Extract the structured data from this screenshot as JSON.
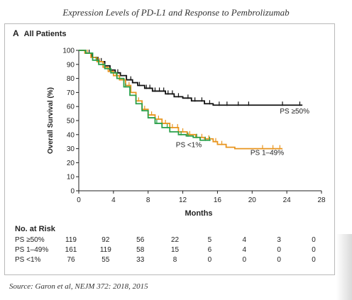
{
  "header": {
    "title": "Expression Levels of PD-L1 and Response to Pembrolizumab"
  },
  "panel": {
    "letter": "A",
    "subtitle": "All Patients"
  },
  "source": "Source: Garon et al, NEJM 372: 2018, 2015",
  "risk_table": {
    "title": "No. at Risk",
    "rows": [
      {
        "label": "PS ≥50%",
        "values": [
          "119",
          "92",
          "56",
          "22",
          "5",
          "4",
          "3",
          "0"
        ]
      },
      {
        "label": "PS 1–49%",
        "values": [
          "161",
          "119",
          "58",
          "15",
          "6",
          "4",
          "0",
          "0"
        ]
      },
      {
        "label": "PS <1%",
        "values": [
          "76",
          "55",
          "33",
          "8",
          "0",
          "0",
          "0",
          "0"
        ]
      }
    ]
  },
  "colors": {
    "ps50": "#111111",
    "ps1_49": "#e8951f",
    "ps1": "#2aa04a",
    "axis": "#222222",
    "panel_border": "#b9b9b9"
  },
  "chart_data": {
    "type": "line",
    "xlabel": "Months",
    "ylabel": "Overall Survival (%)",
    "xlim": [
      0,
      28
    ],
    "ylim": [
      0,
      100
    ],
    "xticks": [
      0,
      4,
      8,
      12,
      16,
      20,
      24,
      28
    ],
    "yticks": [
      0,
      10,
      20,
      30,
      40,
      50,
      60,
      70,
      80,
      90,
      100
    ],
    "grid": false,
    "series": [
      {
        "name": "PS ≥50%",
        "color_key": "ps50",
        "points": [
          [
            0,
            100
          ],
          [
            0.8,
            98
          ],
          [
            1.5,
            95
          ],
          [
            2.2,
            92
          ],
          [
            3,
            89
          ],
          [
            3.6,
            86
          ],
          [
            4.2,
            84
          ],
          [
            4.8,
            82
          ],
          [
            5.5,
            79
          ],
          [
            6.2,
            77
          ],
          [
            6.8,
            75
          ],
          [
            7.6,
            73
          ],
          [
            8.5,
            71
          ],
          [
            10,
            69
          ],
          [
            11,
            67
          ],
          [
            12,
            66
          ],
          [
            13,
            64
          ],
          [
            14.5,
            62
          ],
          [
            15.5,
            61
          ],
          [
            25.8,
            61
          ]
        ],
        "censor_x": [
          1.2,
          2.6,
          4.5,
          6,
          7,
          7.8,
          8.2,
          8.8,
          9.3,
          9.8,
          10.3,
          10.8,
          11.5,
          12.6,
          13.4,
          14.2,
          15.1,
          16.2,
          17.1,
          18.4,
          19.6,
          23.5,
          25.5
        ]
      },
      {
        "name": "PS 1–49%",
        "color_key": "ps1_49",
        "points": [
          [
            0,
            100
          ],
          [
            0.7,
            98
          ],
          [
            1.4,
            95
          ],
          [
            2.1,
            92
          ],
          [
            2.8,
            88
          ],
          [
            3.4,
            85
          ],
          [
            4,
            82
          ],
          [
            4.7,
            79
          ],
          [
            5.4,
            75
          ],
          [
            6,
            70
          ],
          [
            6.6,
            64
          ],
          [
            7.3,
            58
          ],
          [
            8,
            54
          ],
          [
            8.8,
            51
          ],
          [
            9.6,
            48
          ],
          [
            10.5,
            45
          ],
          [
            11.5,
            42
          ],
          [
            12.5,
            40
          ],
          [
            13.5,
            38
          ],
          [
            14.5,
            37
          ],
          [
            15.5,
            35
          ],
          [
            16,
            33
          ],
          [
            17,
            31
          ],
          [
            18,
            30
          ],
          [
            23.5,
            30
          ]
        ],
        "censor_x": [
          1,
          2.4,
          4.3,
          5.8,
          6.9,
          7.6,
          8.4,
          9.2,
          10,
          10.8,
          11.4,
          12,
          12.8,
          13.6,
          14.2,
          15,
          15.8,
          16.5,
          21.2,
          22.4,
          23.2
        ]
      },
      {
        "name": "PS <1%",
        "color_key": "ps1",
        "points": [
          [
            0,
            100
          ],
          [
            0.8,
            98
          ],
          [
            1.6,
            93
          ],
          [
            2.3,
            90
          ],
          [
            3,
            87
          ],
          [
            3.7,
            84
          ],
          [
            4.4,
            80
          ],
          [
            5.2,
            74
          ],
          [
            5.9,
            68
          ],
          [
            6.6,
            62
          ],
          [
            7.3,
            57
          ],
          [
            8,
            52
          ],
          [
            8.8,
            48
          ],
          [
            9.6,
            45
          ],
          [
            10.5,
            42
          ],
          [
            11.5,
            40
          ],
          [
            12.4,
            39
          ],
          [
            13.2,
            38
          ],
          [
            14,
            36
          ],
          [
            15.2,
            36
          ]
        ],
        "censor_x": [
          2,
          5.4,
          9,
          10.2,
          11.8,
          12.6,
          13.6,
          14.6,
          15.1
        ]
      }
    ],
    "annotations": [
      {
        "text": "PS ≥50%",
        "x": 23.2,
        "y": 55
      },
      {
        "text": "PS 1–49%",
        "x": 19.8,
        "y": 25.5
      },
      {
        "text": "PS <1%",
        "x": 11.2,
        "y": 31
      }
    ]
  }
}
